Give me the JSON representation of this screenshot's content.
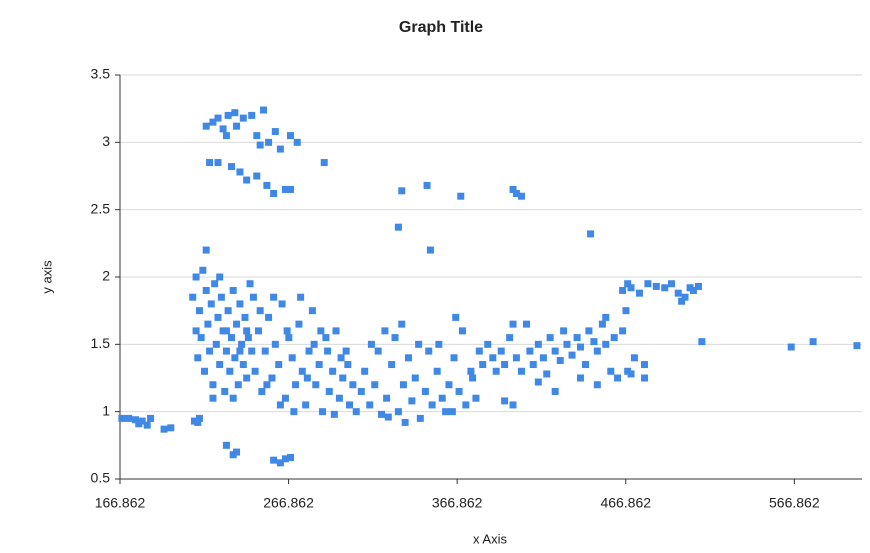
{
  "chart_data": {
    "type": "scatter",
    "title": "Graph Title",
    "x_label": "x Axis",
    "y_label": "y axis",
    "color": "#3f88e6",
    "grid": true,
    "xlim": [
      166.862,
      607
    ],
    "xticks": [
      166.862,
      266.862,
      366.862,
      466.862,
      566.862
    ],
    "ylim": [
      0.5,
      3.5
    ],
    "yticks": [
      0.5,
      1,
      1.5,
      2,
      2.5,
      3,
      3.5
    ],
    "x": [
      168,
      172,
      176,
      180,
      183,
      185,
      178,
      193,
      197,
      211,
      213,
      214,
      230,
      234,
      236,
      258,
      262,
      265,
      268,
      218,
      222,
      225,
      228,
      231,
      235,
      240,
      245,
      248,
      252,
      255,
      259,
      262,
      268,
      272,
      230,
      236,
      220,
      225,
      233,
      238,
      242,
      248,
      254,
      258,
      265,
      268,
      288,
      250,
      332,
      334,
      349,
      351,
      369,
      400,
      402,
      405,
      446,
      465,
      468,
      470,
      475,
      480,
      485,
      490,
      494,
      498,
      502,
      505,
      510,
      500,
      507,
      512,
      565,
      578,
      604,
      210,
      212,
      213,
      214,
      215,
      216,
      217,
      218,
      219,
      220,
      221,
      222,
      223,
      224,
      225,
      226,
      227,
      228,
      229,
      230,
      231,
      232,
      233,
      234,
      235,
      236,
      237,
      238,
      239,
      240,
      241,
      242,
      243,
      244,
      245,
      212,
      218,
      222,
      226,
      230,
      234,
      238,
      242,
      246,
      247,
      249,
      251,
      253,
      255,
      257,
      259,
      261,
      263,
      265,
      267,
      269,
      271,
      273,
      275,
      277,
      279,
      281,
      283,
      285,
      287,
      289,
      291,
      293,
      295,
      297,
      299,
      301,
      303,
      305,
      250,
      258,
      266,
      274,
      282,
      290,
      298,
      254,
      262,
      270,
      278,
      286,
      294,
      302,
      307,
      310,
      312,
      315,
      318,
      320,
      322,
      325,
      328,
      330,
      332,
      335,
      338,
      340,
      342,
      345,
      348,
      350,
      352,
      355,
      358,
      360,
      362,
      365,
      368,
      370,
      372,
      375,
      378,
      380,
      316,
      324,
      334,
      344,
      356,
      366,
      376,
      336,
      326,
      364,
      382,
      385,
      388,
      390,
      393,
      395,
      398,
      400,
      402,
      405,
      408,
      410,
      412,
      415,
      418,
      420,
      422,
      425,
      428,
      430,
      432,
      435,
      438,
      440,
      443,
      445,
      448,
      450,
      453,
      455,
      458,
      460,
      462,
      465,
      468,
      470,
      472,
      415,
      425,
      395,
      440,
      455,
      467,
      478,
      478,
      450,
      400
    ],
    "values": [
      0.95,
      0.95,
      0.94,
      0.93,
      0.9,
      0.95,
      0.91,
      0.87,
      0.88,
      0.93,
      0.92,
      0.95,
      0.75,
      0.68,
      0.7,
      0.64,
      0.62,
      0.65,
      0.66,
      3.12,
      3.15,
      3.18,
      3.1,
      3.2,
      3.22,
      3.18,
      3.2,
      3.05,
      3.24,
      3.0,
      3.08,
      2.95,
      3.05,
      3.0,
      3.05,
      3.12,
      2.85,
      2.85,
      2.82,
      2.78,
      2.72,
      2.75,
      2.68,
      2.62,
      2.65,
      2.65,
      2.85,
      2.98,
      2.37,
      2.64,
      2.68,
      2.2,
      2.6,
      2.65,
      2.62,
      2.6,
      2.32,
      1.9,
      1.95,
      1.92,
      1.88,
      1.95,
      1.93,
      1.92,
      1.95,
      1.88,
      1.85,
      1.92,
      1.93,
      1.82,
      1.9,
      1.52,
      1.48,
      1.52,
      1.49,
      1.85,
      1.6,
      1.4,
      1.75,
      1.55,
      2.05,
      1.3,
      1.9,
      1.65,
      1.45,
      1.8,
      1.2,
      1.95,
      1.5,
      1.7,
      1.35,
      1.85,
      1.6,
      1.15,
      1.45,
      1.75,
      1.3,
      1.55,
      1.9,
      1.4,
      1.65,
      1.2,
      1.8,
      1.5,
      1.35,
      1.7,
      1.25,
      1.55,
      1.95,
      1.45,
      2.0,
      2.2,
      1.1,
      2.0,
      1.6,
      1.1,
      1.45,
      1.6,
      1.85,
      1.3,
      1.6,
      1.15,
      1.45,
      1.7,
      1.25,
      1.5,
      1.35,
      1.8,
      1.1,
      1.55,
      1.4,
      1.2,
      1.65,
      1.3,
      1.05,
      1.45,
      1.75,
      1.2,
      1.35,
      1.0,
      1.55,
      1.15,
      1.3,
      1.6,
      1.1,
      1.25,
      1.45,
      1.05,
      1.2,
      1.75,
      1.85,
      1.6,
      1.85,
      1.5,
      1.45,
      1.4,
      1.2,
      1.05,
      1.0,
      1.25,
      1.6,
      0.98,
      1.35,
      1.0,
      1.15,
      1.3,
      1.05,
      1.2,
      1.45,
      0.98,
      1.1,
      1.35,
      1.55,
      1.0,
      1.2,
      1.4,
      1.08,
      1.25,
      0.95,
      1.15,
      1.45,
      1.05,
      1.3,
      1.1,
      1.0,
      1.2,
      1.4,
      1.15,
      1.6,
      1.05,
      1.3,
      1.1,
      1.45,
      1.5,
      1.6,
      1.65,
      1.5,
      1.5,
      1.7,
      1.25,
      0.92,
      0.96,
      1.0,
      1.35,
      1.5,
      1.4,
      1.3,
      1.45,
      1.35,
      1.55,
      1.05,
      1.4,
      1.3,
      1.65,
      1.45,
      1.35,
      1.5,
      1.4,
      1.28,
      1.55,
      1.45,
      1.38,
      1.6,
      1.5,
      1.42,
      1.55,
      1.48,
      1.35,
      1.6,
      1.52,
      1.45,
      1.65,
      1.5,
      1.3,
      1.55,
      1.25,
      1.6,
      1.3,
      1.28,
      1.4,
      1.22,
      1.15,
      1.08,
      1.25,
      1.7,
      1.75,
      1.35,
      1.25,
      1.2,
      1.65
    ]
  }
}
